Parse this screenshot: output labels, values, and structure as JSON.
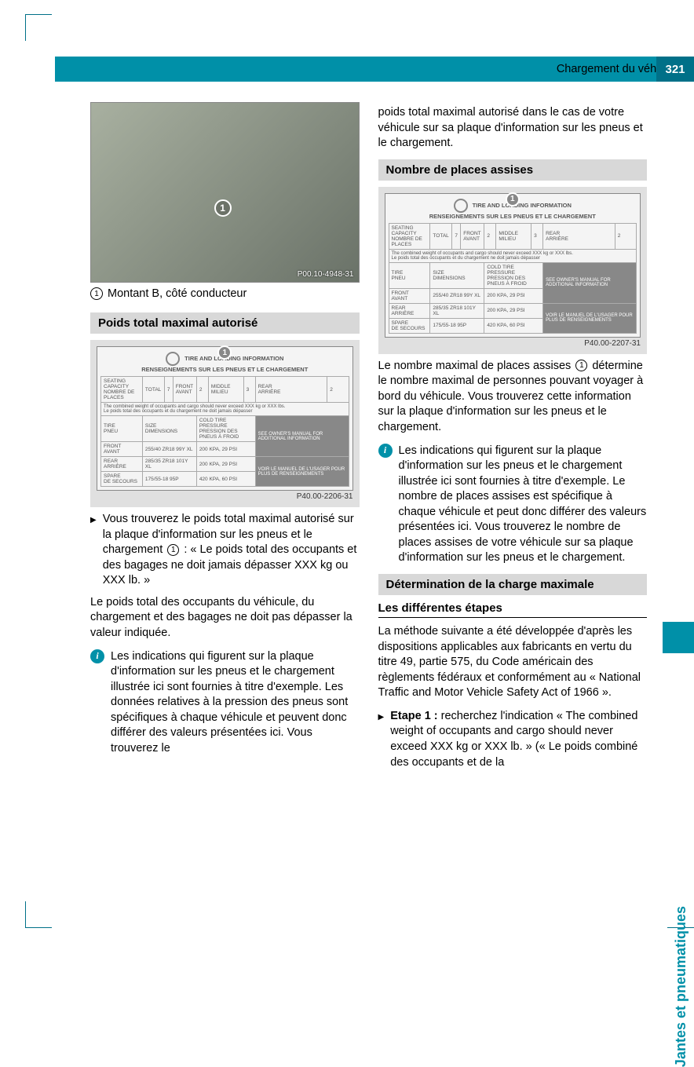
{
  "header": {
    "title": "Chargement du véhicule",
    "page_number": "321"
  },
  "side_tab": "Jantes et pneumatiques",
  "left_column": {
    "photo": {
      "ref": "P00.10-4948-31",
      "callout": "1"
    },
    "caption": {
      "num": "1",
      "text": "Montant B, côté conducteur"
    },
    "section1": {
      "heading": "Poids total maximal autorisé",
      "placard": {
        "callout": "1",
        "title1": "TIRE AND LOADING INFORMATION",
        "title2": "RENSEIGNEMENTS SUR LES PNEUS ET LE CHARGEMENT",
        "seating_row": {
          "label": "SEATING CAPACITY\nNOMBRE DE PLACES",
          "total": "TOTAL",
          "total_v": "7",
          "front": "FRONT\nAVANT",
          "front_v": "2",
          "mid": "MIDDLE\nMILIEU",
          "mid_v": "3",
          "rear": "REAR\nARRIÈRE",
          "rear_v": "2"
        },
        "warning": "The combined weight of occupants and cargo should never exceed   XXX kg or XXX lbs.\nLe poids total des occupants et du chargement ne doit jamais dépasser",
        "rows": [
          {
            "c1": "TIRE\nPNEU",
            "c2": "SIZE\nDIMENSIONS",
            "c3": "COLD TIRE PRESSURE\nPRESSION DES PNEUS À FROID",
            "c4": "SEE OWNER'S MANUAL FOR ADDITIONAL INFORMATION"
          },
          {
            "c1": "FRONT\nAVANT",
            "c2": "255/40 ZR18 99Y XL",
            "c3": "200 KPA, 29 PSI",
            "c4": ""
          },
          {
            "c1": "REAR\nARRIÈRE",
            "c2": "285/35 ZR18 101Y XL",
            "c3": "200 KPA, 29 PSI",
            "c4": "VOIR LE MANUEL DE L'USAGER POUR PLUS DE RENSEIGNEMENTS"
          },
          {
            "c1": "SPARE\nDE SECOURS",
            "c2": "175/55-18 95P",
            "c3": "420 KPA, 60 PSI",
            "c4": ""
          }
        ],
        "ref": "P40.00-2206-31"
      },
      "bullet1": "Vous trouverez le poids total maximal autorisé sur la plaque d'information sur les pneus et le chargement ① : « Le poids total des occupants et des bagages ne doit jamais dépasser XXX kg ou XXX lb. »",
      "para1": "Le poids total des occupants du véhicule, du chargement et des bagages ne doit pas dépasser la valeur indiquée.",
      "info1": "Les indications qui figurent sur la plaque d'information sur les pneus et le chargement illustrée ici sont fournies à titre d'exemple. Les données relatives à la pression des pneus sont spécifiques à chaque véhicule et peuvent donc différer des valeurs présentées ici. Vous trouverez le"
    }
  },
  "right_column": {
    "para_top": "poids total maximal autorisé dans le cas de votre véhicule sur sa plaque d'information sur les pneus et le chargement.",
    "section2": {
      "heading": "Nombre de places assises",
      "placard": {
        "callout": "1",
        "title1": "TIRE AND LOADING INFORMATION",
        "title2": "RENSEIGNEMENTS SUR LES PNEUS ET LE CHARGEMENT",
        "seating_row": {
          "label": "SEATING CAPACITY\nNOMBRE DE PLACES",
          "total": "TOTAL",
          "total_v": "7",
          "front": "FRONT\nAVANT",
          "front_v": "2",
          "mid": "MIDDLE\nMILIEU",
          "mid_v": "3",
          "rear": "REAR\nARRIÈRE",
          "rear_v": "2"
        },
        "warning": "The combined weight of occupants and cargo should never exceed   XXX kg or XXX lbs.\nLe poids total des occupants et du chargement ne doit jamais dépasser",
        "rows": [
          {
            "c1": "TIRE\nPNEU",
            "c2": "SIZE\nDIMENSIONS",
            "c3": "COLD TIRE PRESSURE\nPRESSION DES PNEUS À FROID",
            "c4": "SEE OWNER'S MANUAL FOR ADDITIONAL INFORMATION"
          },
          {
            "c1": "FRONT\nAVANT",
            "c2": "255/40 ZR18 99Y XL",
            "c3": "200 KPA, 29 PSI",
            "c4": ""
          },
          {
            "c1": "REAR\nARRIÈRE",
            "c2": "285/35 ZR18 101Y XL",
            "c3": "200 KPA, 29 PSI",
            "c4": "VOIR LE MANUEL DE L'USAGER POUR PLUS DE RENSEIGNEMENTS"
          },
          {
            "c1": "SPARE\nDE SECOURS",
            "c2": "175/55-18 95P",
            "c3": "420 KPA, 60 PSI",
            "c4": ""
          }
        ],
        "ref": "P40.00-2207-31"
      },
      "para1_a": "Le nombre maximal de places assises ",
      "para1_b": " détermine le nombre maximal de personnes pouvant voyager à bord du véhicule. Vous trouverez cette information sur la plaque d'information sur les pneus et le chargement.",
      "info1": "Les indications qui figurent sur la plaque d'information sur les pneus et le chargement illustrée ici sont fournies à titre d'exemple. Le nombre de places assises est spécifique à chaque véhicule et peut donc différer des valeurs présentées ici. Vous trouverez le nombre de places assises de votre véhicule sur sa plaque d'information sur les pneus et le chargement."
    },
    "section3": {
      "heading": "Détermination de la charge maximale",
      "sub": "Les différentes étapes",
      "para1": "La méthode suivante a été développée d'après les dispositions applicables aux fabricants en vertu du titre 49, partie 575, du Code américain des règlements fédéraux et conformément au « National Traffic and Motor Vehicle Safety Act of 1966 ».",
      "bullet_label": "Etape 1 :",
      "bullet_text": " recherchez l'indication « The combined weight of occupants and cargo should never exceed XXX kg or XXX lb. » (« Le poids combiné des occupants et de la"
    }
  }
}
